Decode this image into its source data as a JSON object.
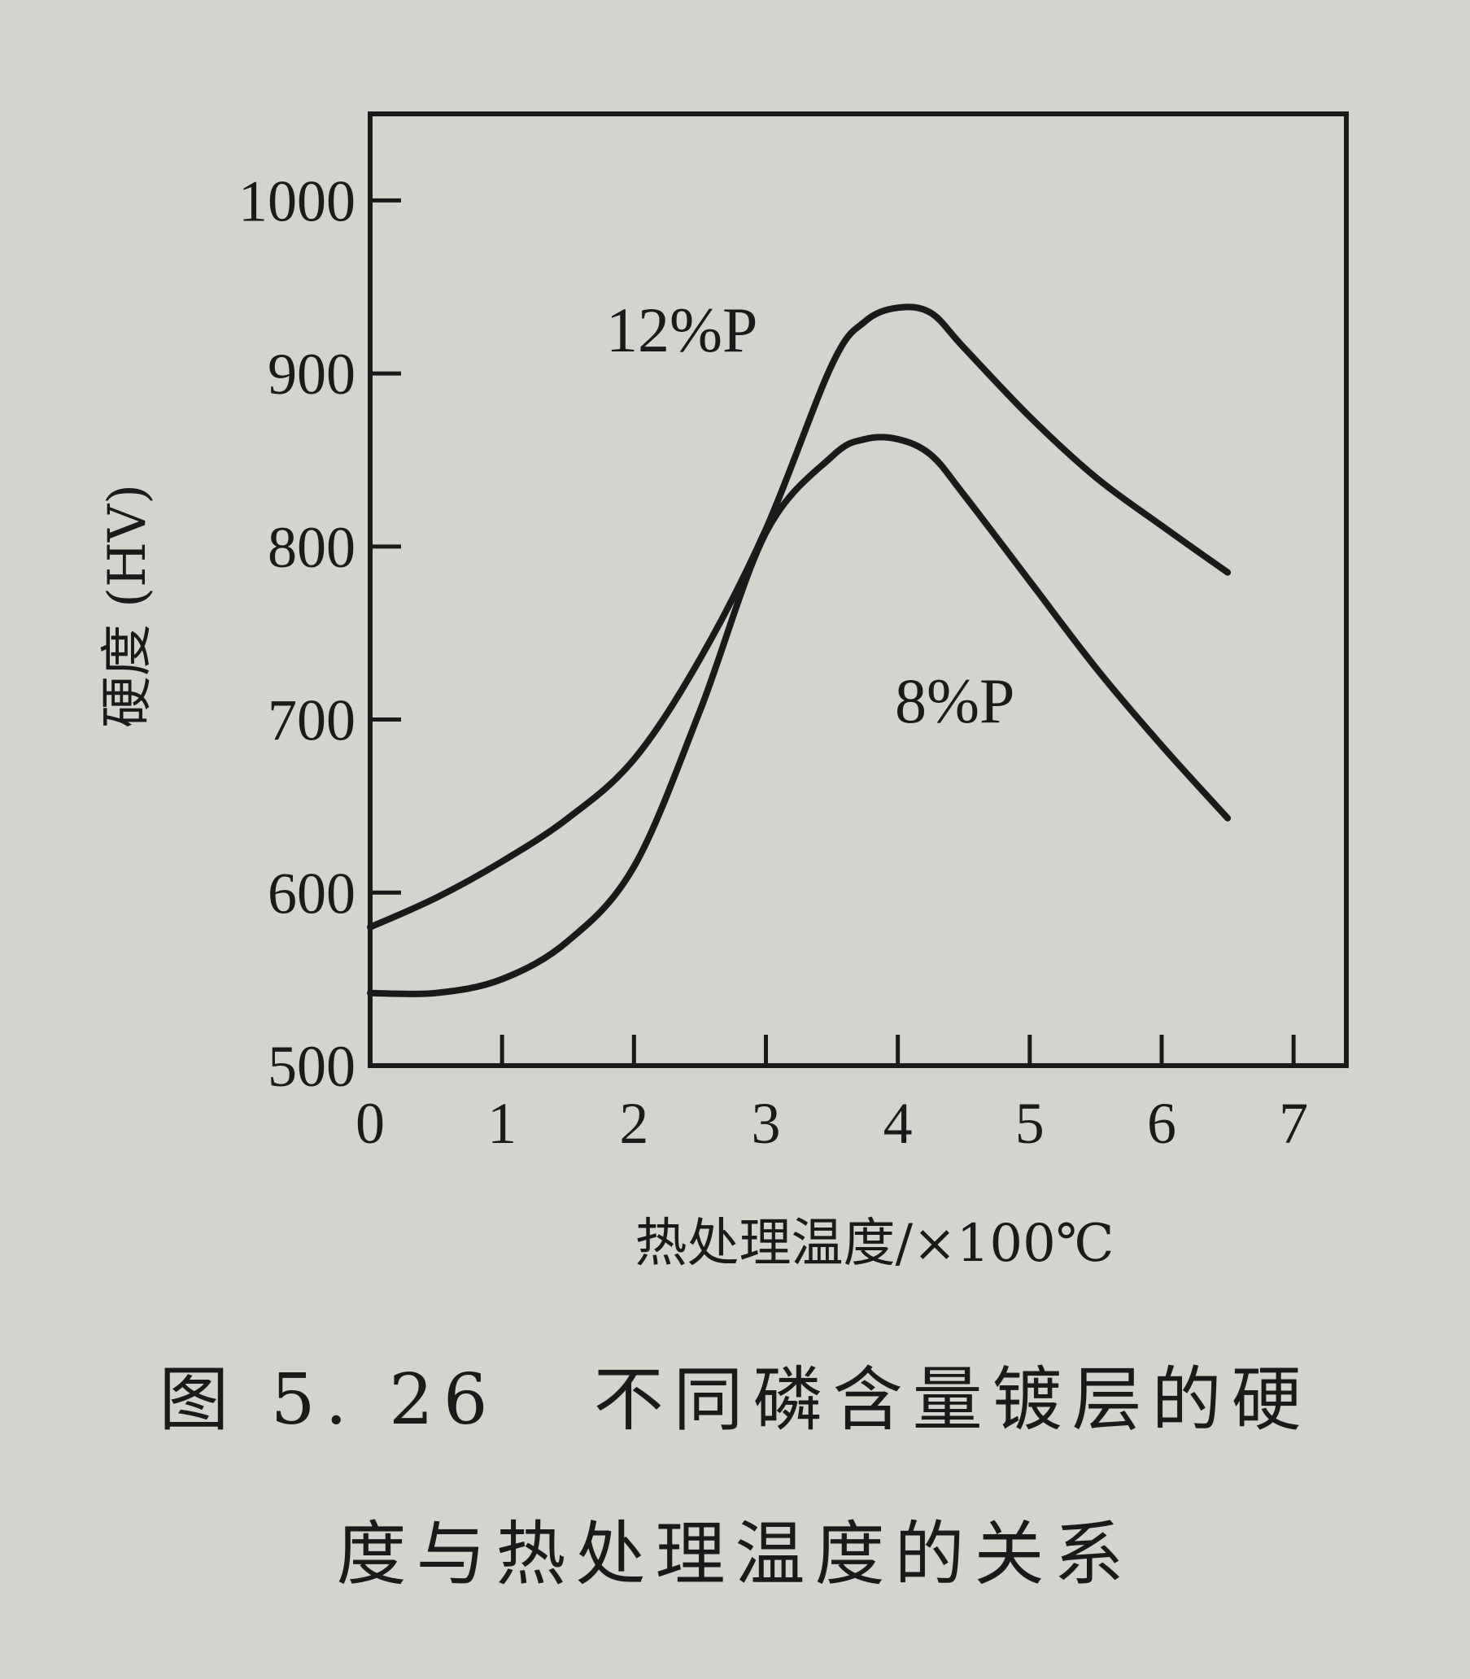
{
  "chart_data": {
    "type": "line",
    "xlabel": "热处理温度/×100℃",
    "ylabel": "硬度 (HV)",
    "xlim": [
      0,
      7.4
    ],
    "ylim": [
      500,
      1050
    ],
    "x_ticks": [
      0,
      1,
      2,
      3,
      4,
      5,
      6,
      7
    ],
    "y_ticks": [
      500,
      600,
      700,
      800,
      900,
      1000
    ],
    "grid": false,
    "series": [
      {
        "name": "12%P",
        "x": [
          0,
          0.5,
          1,
          1.5,
          2,
          2.5,
          3,
          3.5,
          3.75,
          4,
          4.25,
          4.5,
          5,
          5.5,
          6,
          6.5
        ],
        "y": [
          580,
          597,
          618,
          643,
          677,
          735,
          810,
          905,
          930,
          938,
          935,
          915,
          875,
          840,
          812,
          785
        ]
      },
      {
        "name": "8%P",
        "x": [
          0,
          0.5,
          1,
          1.5,
          2,
          2.5,
          3,
          3.5,
          3.75,
          4,
          4.25,
          4.5,
          5,
          5.5,
          6,
          6.5
        ],
        "y": [
          542,
          542,
          550,
          572,
          615,
          705,
          808,
          852,
          862,
          862,
          853,
          830,
          780,
          730,
          685,
          643
        ]
      }
    ]
  },
  "caption": {
    "line1": "图 5. 26   不同磷含量镀层的硬",
    "line2": "度与热处理温度的关系"
  }
}
